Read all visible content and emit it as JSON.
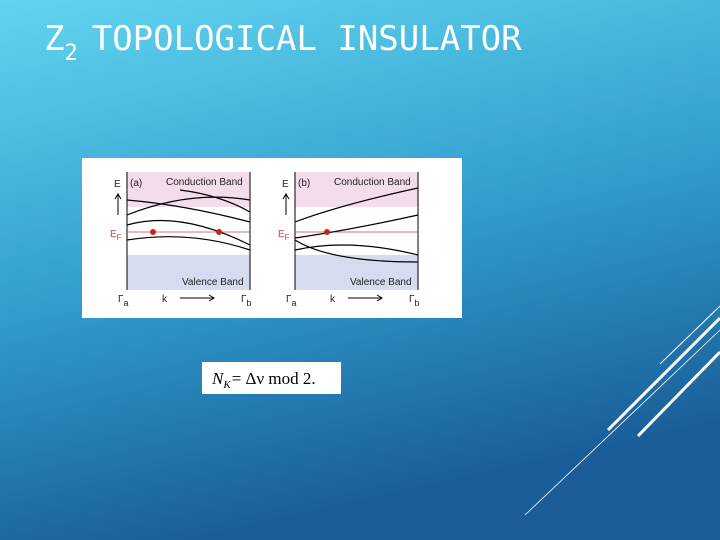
{
  "header": {
    "title": {
      "main": "Z",
      "subscript": "2",
      "rest": "TOPOLOGICAL INSULATOR"
    }
  },
  "figure": {
    "panels": [
      {
        "energy": "E",
        "label": "(a)",
        "conduction": "Conduction Band",
        "fermi": "E",
        "fermi_sub": "F",
        "valence": "Valence Band",
        "start": "Γ",
        "start_sub": "a",
        "momentum": "k",
        "end": "Γ",
        "end_sub": "b"
      },
      {
        "energy": "E",
        "label": "(b)",
        "conduction": "Conduction Band",
        "fermi": "E",
        "fermi_sub": "F",
        "valence": "Valence Band",
        "start": "Γ",
        "start_sub": "a",
        "momentum": "k",
        "end": "Γ",
        "end_sub": "b"
      }
    ]
  },
  "equation": {
    "symbol": "N",
    "symbol_sub": "K",
    "rest": "= Δν mod 2."
  }
}
